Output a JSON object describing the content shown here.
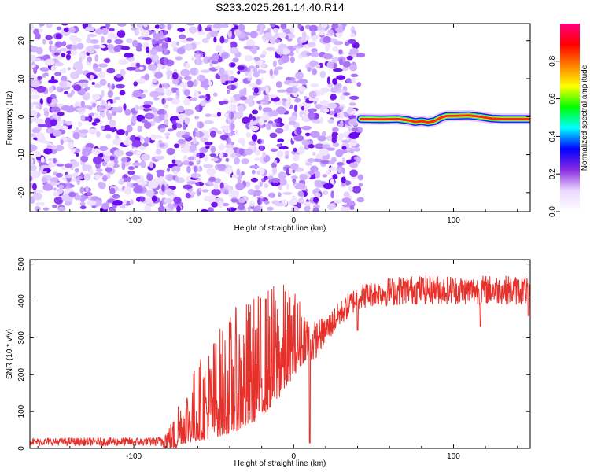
{
  "title": "S233.2025.261.14.40.R14",
  "chart_data": [
    {
      "type": "heatmap",
      "xlabel": "Height of straight line (km)",
      "ylabel": "Frequency (Hz)",
      "xlim": [
        -165,
        148
      ],
      "ylim": [
        -25,
        24.5
      ],
      "xticks": [
        -100,
        0,
        100
      ],
      "yticks": [
        -20,
        -10,
        0,
        10,
        20
      ],
      "noise_region_x": [
        -165,
        42
      ],
      "signal_trace": {
        "x": [
          42,
          55,
          65,
          72,
          76,
          80,
          84,
          88,
          92,
          96,
          100,
          110,
          118,
          124,
          130,
          140,
          148
        ],
        "freq": [
          -0.6,
          -0.7,
          -0.6,
          -1.0,
          -1.4,
          -1.2,
          -1.5,
          -1.2,
          -0.3,
          0.2,
          0.2,
          0.3,
          -0.1,
          -0.5,
          -0.6,
          -0.6,
          -0.6
        ]
      },
      "colorbar": {
        "label": "Normalized spectral amplitude",
        "range": [
          0,
          1
        ],
        "ticks": [
          0.0,
          0.2,
          0.4,
          0.6,
          0.8
        ],
        "colors": [
          "#ffffff",
          "#ebd8ff",
          "#8a2be2",
          "#0000ff",
          "#00ffff",
          "#00ff00",
          "#ffff00",
          "#ff8000",
          "#ff0000",
          "#ff007f"
        ]
      }
    },
    {
      "type": "line",
      "xlabel": "Height of straight line (km)",
      "ylabel": "SNR (10 * v/v)",
      "xlim": [
        -165,
        148
      ],
      "ylim": [
        0,
        512
      ],
      "xticks": [
        -100,
        0,
        100
      ],
      "yticks": [
        0,
        100,
        200,
        300,
        400,
        500
      ],
      "line_color": "#e8302a",
      "envelope": {
        "x": [
          -165,
          -110,
          -85,
          -78,
          -70,
          -60,
          -50,
          -40,
          -30,
          -20,
          -10,
          0,
          10,
          20,
          30,
          40,
          50,
          60,
          70,
          80,
          90,
          100,
          110,
          120,
          130,
          140,
          148
        ],
        "base": [
          18,
          18,
          18,
          25,
          40,
          60,
          80,
          100,
          120,
          150,
          190,
          240,
          280,
          320,
          370,
          410,
          420,
          425,
          430,
          430,
          430,
          430,
          428,
          430,
          430,
          428,
          430
        ],
        "amp": [
          10,
          12,
          12,
          40,
          70,
          100,
          130,
          150,
          160,
          160,
          150,
          110,
          60,
          40,
          35,
          35,
          35,
          40,
          40,
          40,
          40,
          40,
          40,
          40,
          40,
          40,
          40
        ]
      },
      "dips": [
        {
          "x": 10,
          "y": 15
        },
        {
          "x": 40,
          "y": 320
        },
        {
          "x": 117,
          "y": 330
        },
        {
          "x": 147,
          "y": 360
        }
      ]
    }
  ]
}
